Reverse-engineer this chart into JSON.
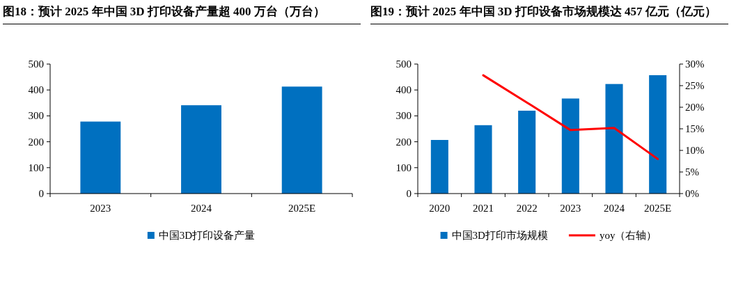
{
  "chart_data": [
    {
      "type": "bar",
      "title": "图18：预计 2025 年中国 3D 打印设备产量超 400 万台（万台）",
      "categories": [
        "2023",
        "2024",
        "2025E"
      ],
      "series": [
        {
          "name": "中国3D打印设备产量",
          "color": "#0070c0",
          "values": [
            278,
            341,
            413
          ]
        }
      ],
      "ylim": [
        0,
        500
      ],
      "yticks": [
        0,
        100,
        200,
        300,
        400,
        500
      ],
      "legend": "bottom"
    },
    {
      "type": "bar",
      "title": "图19：预计 2025 年中国 3D 打印设备市场规模达 457 亿元（亿元）",
      "categories": [
        "2020",
        "2021",
        "2022",
        "2023",
        "2024",
        "2025E"
      ],
      "series": [
        {
          "name": "中国3D打印市场规模",
          "color": "#0070c0",
          "values": [
            207,
            264,
            320,
            367,
            423,
            457
          ]
        },
        {
          "name": "yoy（右轴）",
          "type": "line",
          "axis": "y2",
          "color": "#ff0000",
          "values": [
            null,
            27.4,
            21.1,
            14.7,
            15.2,
            8.0
          ]
        }
      ],
      "ylim": [
        0,
        500
      ],
      "yticks": [
        0,
        100,
        200,
        300,
        400,
        500
      ],
      "y2lim": [
        0,
        30
      ],
      "y2ticks": [
        {
          "value": 0,
          "label": "0%"
        },
        {
          "value": 5,
          "label": "5%"
        },
        {
          "value": 10,
          "label": "10%"
        },
        {
          "value": 15,
          "label": "15%"
        },
        {
          "value": 20,
          "label": "20%"
        },
        {
          "value": 25,
          "label": "25%"
        },
        {
          "value": 30,
          "label": "30%"
        }
      ],
      "legend": "bottom"
    }
  ]
}
